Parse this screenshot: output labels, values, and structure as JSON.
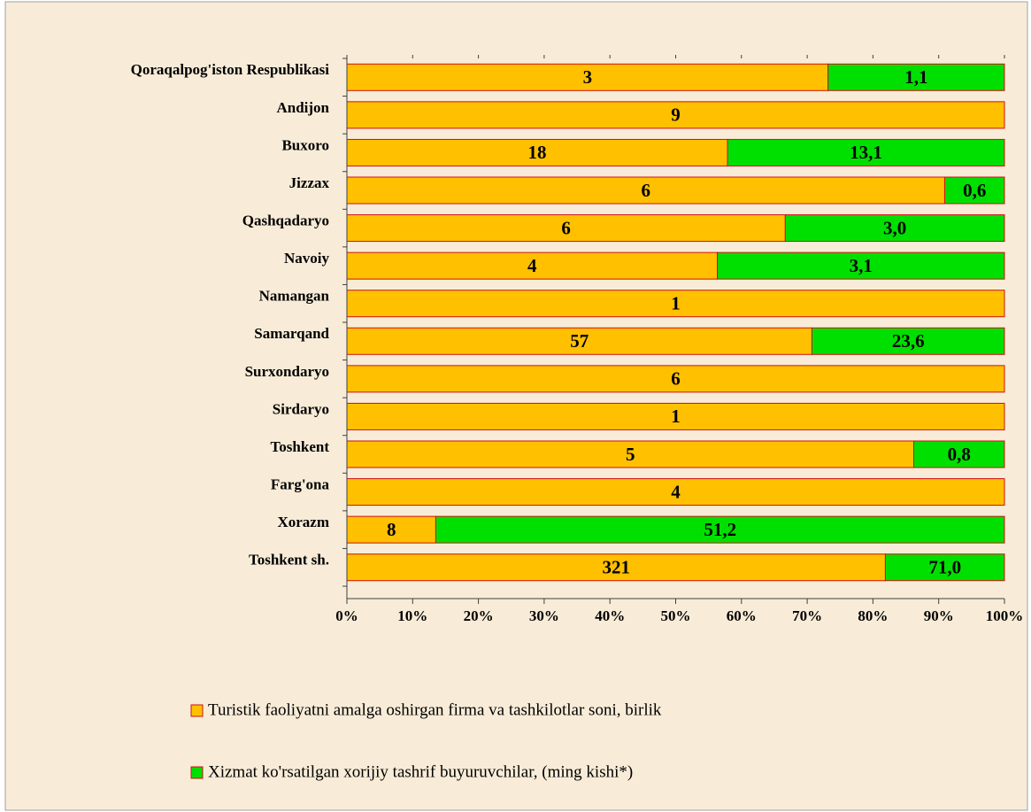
{
  "chart_data": {
    "type": "stacked_bar_100",
    "categories": [
      "Qoraqalpog'iston Respublikasi",
      "Andijon",
      "Buxoro",
      "Jizzax",
      "Qashqadaryo",
      "Navoiy",
      "Namangan",
      "Samarqand",
      "Surxondaryo",
      "Sirdaryo",
      "Toshkent",
      "Farg'ona",
      "Xorazm",
      "Toshkent sh."
    ],
    "series": [
      {
        "name": "Turistik faoliyatni amalga oshirgan firma va tashkilotlar soni, birlik",
        "color": "#ffc000",
        "values": [
          3,
          9,
          18,
          6,
          6,
          4,
          1,
          57,
          6,
          1,
          5,
          4,
          8,
          321
        ]
      },
      {
        "name": "Xizmat ko'rsatilgan xorijiy tashrif buyuruvchilar, (ming kishi*)",
        "color": "#00e000",
        "values": [
          1.1,
          null,
          13.1,
          0.6,
          3.0,
          3.1,
          null,
          23.6,
          null,
          null,
          0.8,
          null,
          51.2,
          71.0
        ],
        "value_labels": [
          "1,1",
          null,
          "13,1",
          "0,6",
          "3,0",
          "3,1",
          null,
          "23,6",
          null,
          null,
          "0,8",
          null,
          "51,2",
          "71,0"
        ]
      }
    ],
    "xlim": [
      0,
      100
    ],
    "xticks": [
      {
        "value": 0,
        "label": "0%"
      },
      {
        "value": 10,
        "label": "10%"
      },
      {
        "value": 20,
        "label": "20%"
      },
      {
        "value": 30,
        "label": "30%"
      },
      {
        "value": 40,
        "label": "40%"
      },
      {
        "value": 50,
        "label": "50%"
      },
      {
        "value": 60,
        "label": "60%"
      },
      {
        "value": 70,
        "label": "70%"
      },
      {
        "value": 80,
        "label": "80%"
      },
      {
        "value": 90,
        "label": "90%"
      },
      {
        "value": 100,
        "label": "100%"
      }
    ]
  }
}
